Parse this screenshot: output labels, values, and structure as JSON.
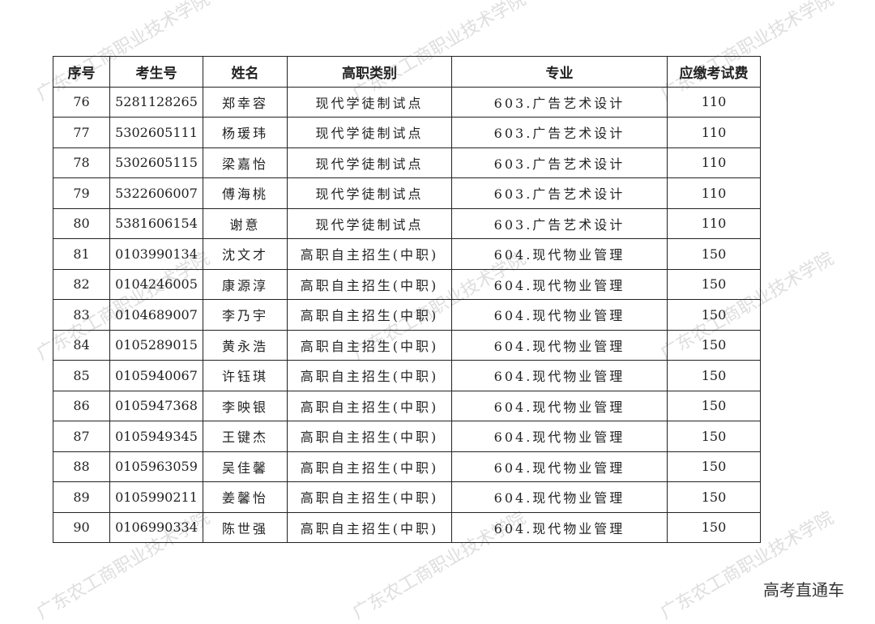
{
  "headers": [
    "序号",
    "考生号",
    "姓名",
    "高职类别",
    "专业",
    "应缴考试费"
  ],
  "rows": [
    [
      "76",
      "5281128265",
      "郑幸容",
      "现代学徒制试点",
      "603.广告艺术设计",
      "110"
    ],
    [
      "77",
      "5302605111",
      "杨瑗玮",
      "现代学徒制试点",
      "603.广告艺术设计",
      "110"
    ],
    [
      "78",
      "5302605115",
      "梁嘉怡",
      "现代学徒制试点",
      "603.广告艺术设计",
      "110"
    ],
    [
      "79",
      "5322606007",
      "傅海桃",
      "现代学徒制试点",
      "603.广告艺术设计",
      "110"
    ],
    [
      "80",
      "5381606154",
      "谢意",
      "现代学徒制试点",
      "603.广告艺术设计",
      "110"
    ],
    [
      "81",
      "0103990134",
      "沈文才",
      "高职自主招生(中职)",
      "604.现代物业管理",
      "150"
    ],
    [
      "82",
      "0104246005",
      "康源淳",
      "高职自主招生(中职)",
      "604.现代物业管理",
      "150"
    ],
    [
      "83",
      "0104689007",
      "李乃宇",
      "高职自主招生(中职)",
      "604.现代物业管理",
      "150"
    ],
    [
      "84",
      "0105289015",
      "黄永浩",
      "高职自主招生(中职)",
      "604.现代物业管理",
      "150"
    ],
    [
      "85",
      "0105940067",
      "许钰琪",
      "高职自主招生(中职)",
      "604.现代物业管理",
      "150"
    ],
    [
      "86",
      "0105947368",
      "李映银",
      "高职自主招生(中职)",
      "604.现代物业管理",
      "150"
    ],
    [
      "87",
      "0105949345",
      "王键杰",
      "高职自主招生(中职)",
      "604.现代物业管理",
      "150"
    ],
    [
      "88",
      "0105963059",
      "吴佳馨",
      "高职自主招生(中职)",
      "604.现代物业管理",
      "150"
    ],
    [
      "89",
      "0105990211",
      "姜馨怡",
      "高职自主招生(中职)",
      "604.现代物业管理",
      "150"
    ],
    [
      "90",
      "0106990334",
      "陈世强",
      "高职自主招生(中职)",
      "604.现代物业管理",
      "150"
    ]
  ],
  "watermark": "广东农工商职业技术学院",
  "brand": "高考直通车"
}
